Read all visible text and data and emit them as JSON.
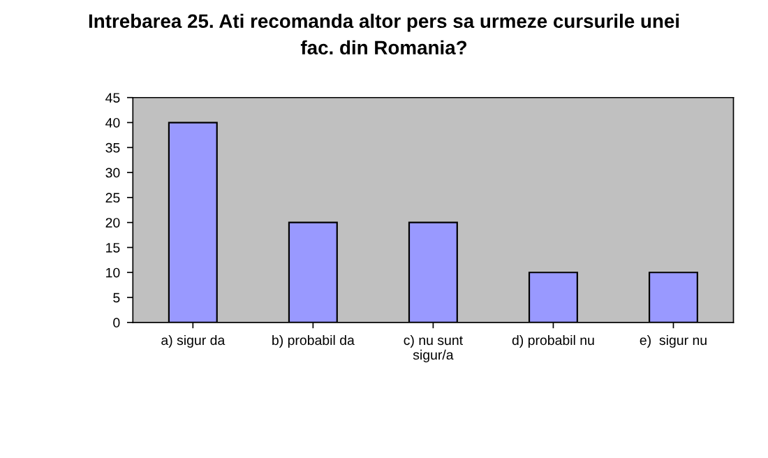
{
  "chart_data": {
    "type": "bar",
    "title": "Intrebarea 25. Ati recomanda altor pers sa urmeze cursurile unei\nfac. din Romania?",
    "categories": [
      "a) sigur da",
      "b) probabil da",
      "c) nu sunt\nsigur/a",
      "d) probabil nu",
      "e)  sigur nu"
    ],
    "values": [
      40,
      20,
      20,
      10,
      10
    ],
    "color": "#9999ff",
    "ylim": [
      0,
      45
    ],
    "yticks": [
      0,
      5,
      10,
      15,
      20,
      25,
      30,
      35,
      40,
      45
    ],
    "grid": false,
    "legend": false
  }
}
